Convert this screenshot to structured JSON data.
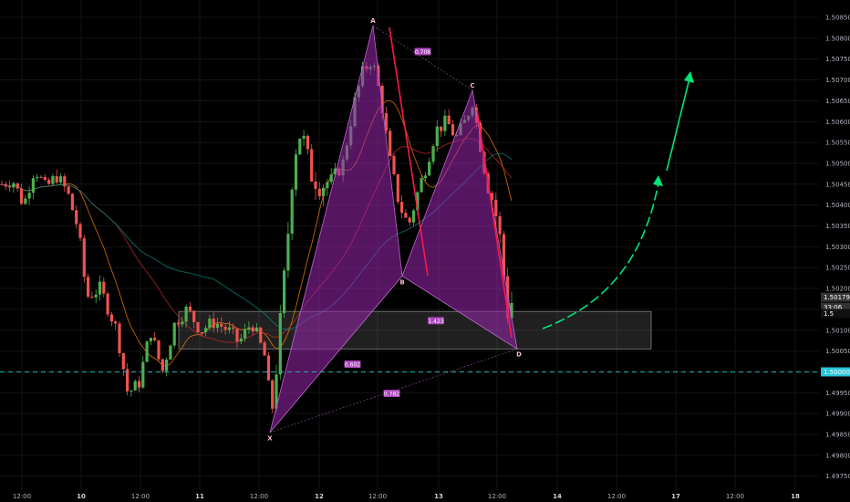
{
  "chart_data": {
    "type": "candlestick",
    "symbol_note": "",
    "y_axis": {
      "range": [
        1.49725,
        1.50925
      ],
      "ticks": [
        "1.50850",
        "1.50800",
        "1.50750",
        "1.50700",
        "1.50650",
        "1.50600",
        "1.50550",
        "1.50500",
        "1.50450",
        "1.50400",
        "1.50350",
        "1.50300",
        "1.50250",
        "1.50200",
        "1.50150",
        "1.50100",
        "1.50050",
        "1.50000",
        "1.49950",
        "1.49900",
        "1.49850",
        "1.49800",
        "1.49750"
      ]
    },
    "x_axis": {
      "ticks": [
        {
          "label": "12:00",
          "day": false
        },
        {
          "label": "10",
          "day": true
        },
        {
          "label": "12:00",
          "day": false
        },
        {
          "label": "11",
          "day": true
        },
        {
          "label": "12:00",
          "day": false
        },
        {
          "label": "12",
          "day": true
        },
        {
          "label": "12:00",
          "day": false
        },
        {
          "label": "13",
          "day": true
        },
        {
          "label": "12:00",
          "day": false
        },
        {
          "label": "14",
          "day": true
        },
        {
          "label": "12:00",
          "day": false
        },
        {
          "label": "17",
          "day": true
        },
        {
          "label": "12:00",
          "day": false
        },
        {
          "label": "18",
          "day": true
        }
      ]
    },
    "current_price": "1.50179",
    "countdown": "33:06",
    "price_axis_tags": [
      {
        "label": "1.50000",
        "color": "#26c6da"
      },
      {
        "label": "1.5",
        "color": "#000000"
      }
    ],
    "support_level": 1.5,
    "demand_zone": {
      "low": 1.50055,
      "high": 1.50145
    },
    "pattern": {
      "name": "harmonic",
      "points": [
        {
          "label": "X",
          "price": 1.49855
        },
        {
          "label": "A",
          "price": 1.5083
        },
        {
          "label": "B",
          "price": 1.5023
        },
        {
          "label": "C",
          "price": 1.50675
        },
        {
          "label": "D",
          "price": 1.50055
        }
      ],
      "ratios": [
        {
          "label": "0.708"
        },
        {
          "label": "0.602"
        },
        {
          "label": "1.423"
        },
        {
          "label": "0.782"
        }
      ]
    },
    "colors": {
      "bull": "#4caf50",
      "bear": "#ef5350",
      "pattern": "#9c27b0",
      "support": "#26a69a",
      "arrow": "#00e676",
      "trend": "#ff1744"
    }
  }
}
